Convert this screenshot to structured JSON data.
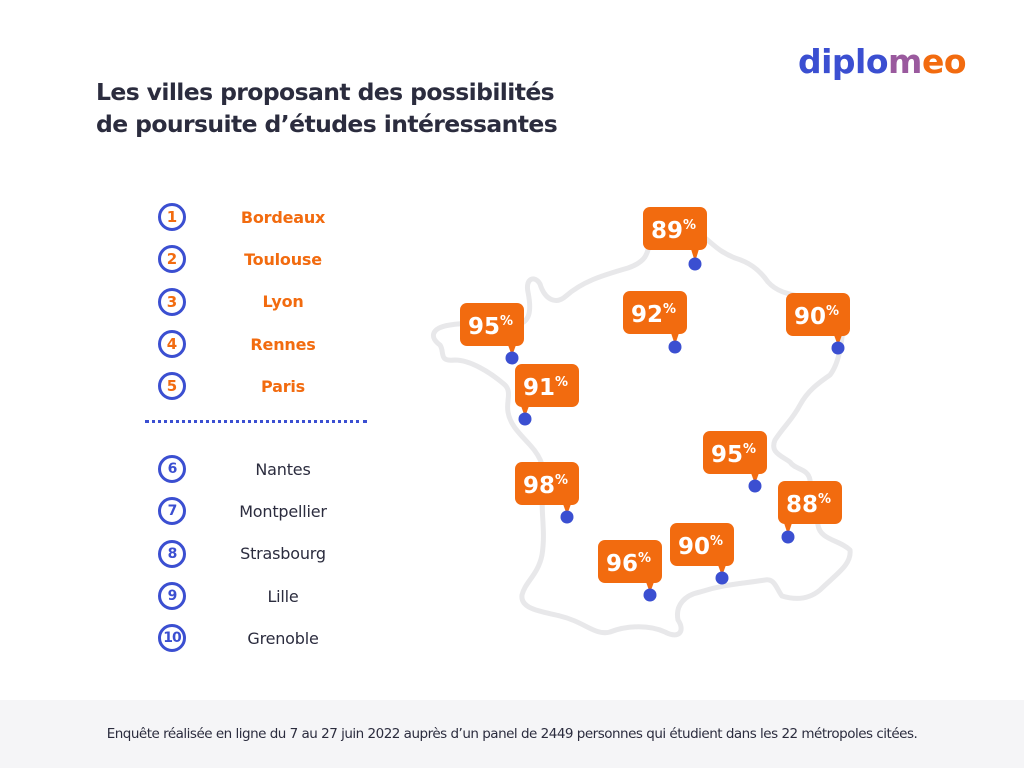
{
  "logo": {
    "part_a": "diplo",
    "part_b": "m",
    "part_c": "eo"
  },
  "title": {
    "line1": "Les villes proposant des possibilités",
    "line2": "de poursuite d’études intéressantes"
  },
  "ranking_top": [
    {
      "rank": "1",
      "city": "Bordeaux"
    },
    {
      "rank": "2",
      "city": "Toulouse"
    },
    {
      "rank": "3",
      "city": "Lyon"
    },
    {
      "rank": "4",
      "city": "Rennes"
    },
    {
      "rank": "5",
      "city": "Paris"
    }
  ],
  "ranking_bottom": [
    {
      "rank": "6",
      "city": "Nantes"
    },
    {
      "rank": "7",
      "city": "Montpellier"
    },
    {
      "rank": "8",
      "city": "Strasbourg"
    },
    {
      "rank": "9",
      "city": "Lille"
    },
    {
      "rank": "10",
      "city": "Grenoble"
    }
  ],
  "map_pins": [
    {
      "name": "lille",
      "value": "89",
      "unit": "%"
    },
    {
      "name": "paris",
      "value": "92",
      "unit": "%"
    },
    {
      "name": "strasbourg",
      "value": "90",
      "unit": "%"
    },
    {
      "name": "rennes",
      "value": "95",
      "unit": "%"
    },
    {
      "name": "nantes",
      "value": "91",
      "unit": "%"
    },
    {
      "name": "lyon",
      "value": "95",
      "unit": "%"
    },
    {
      "name": "grenoble",
      "value": "88",
      "unit": "%"
    },
    {
      "name": "bordeaux",
      "value": "98",
      "unit": "%"
    },
    {
      "name": "montpellier",
      "value": "90",
      "unit": "%"
    },
    {
      "name": "toulouse",
      "value": "96",
      "unit": "%"
    }
  ],
  "colors": {
    "accent_orange": "#f26b0f",
    "accent_blue": "#3b4fd1",
    "text_dark": "#2b2c3e",
    "map_outline": "#e8e8ea",
    "footer_bg": "#f5f5f7"
  },
  "footer": {
    "text": "Enquête réalisée en ligne du 7 au 27 juin 2022 auprès d’un panel de 2449 personnes qui étudient dans les 22 métropoles citées."
  }
}
